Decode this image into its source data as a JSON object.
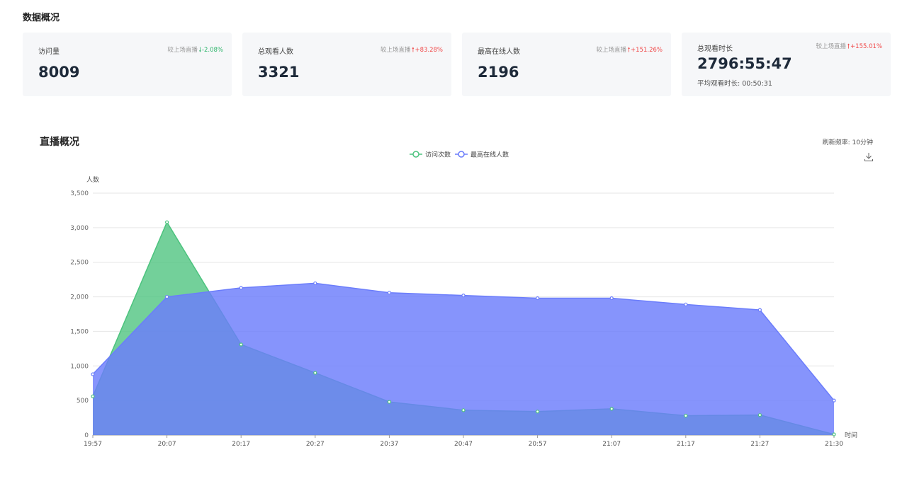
{
  "header": {
    "title": "数据概况"
  },
  "stats": [
    {
      "label": "访问量",
      "value": "8009",
      "compare_label": "较上场直播",
      "direction": "down",
      "change": "-2.08%"
    },
    {
      "label": "总观看人数",
      "value": "3321",
      "compare_label": "较上场直播",
      "direction": "up",
      "change": "+83.28%"
    },
    {
      "label": "最高在线人数",
      "value": "2196",
      "compare_label": "较上场直播",
      "direction": "up",
      "change": "+151.26%"
    },
    {
      "label": "总观看时长",
      "value": "2796:55:47",
      "compare_label": "较上场直播",
      "direction": "up",
      "change": "+155.01%",
      "sub_label": "平均观看时长: 00:50:31"
    }
  ],
  "arrows": {
    "up": "🠑",
    "down": "🠓"
  },
  "live": {
    "title": "直播概况",
    "refresh_label": "刷新频率:",
    "refresh_value": "10分钟",
    "download_icon": "download-icon"
  },
  "colors": {
    "series_a": "#4cc37e",
    "series_b": "#6b7dfb",
    "up": "#f04848",
    "down": "#2cb46a"
  },
  "chart_data": {
    "type": "area",
    "ylabel": "人数",
    "xlabel": "时间",
    "ylim": [
      0,
      3500
    ],
    "yticks": [
      0,
      500,
      1000,
      1500,
      2000,
      2500,
      3000,
      3500
    ],
    "ytick_labels": [
      "0",
      "500",
      "1,000",
      "1,500",
      "2,000",
      "2,500",
      "3,000",
      "3,500"
    ],
    "grid": true,
    "legend": "top-center",
    "x": [
      "19:57",
      "20:07",
      "20:17",
      "20:27",
      "20:37",
      "20:47",
      "20:57",
      "21:07",
      "21:17",
      "21:27",
      "21:30"
    ],
    "series": [
      {
        "name": "访问次数",
        "color": "#4cc37e",
        "values": [
          560,
          3080,
          1310,
          900,
          480,
          360,
          340,
          380,
          280,
          290,
          10
        ]
      },
      {
        "name": "最高在线人数",
        "color": "#6b7dfb",
        "values": [
          880,
          2000,
          2130,
          2196,
          2060,
          2020,
          1980,
          1980,
          1890,
          1810,
          500
        ]
      }
    ]
  }
}
